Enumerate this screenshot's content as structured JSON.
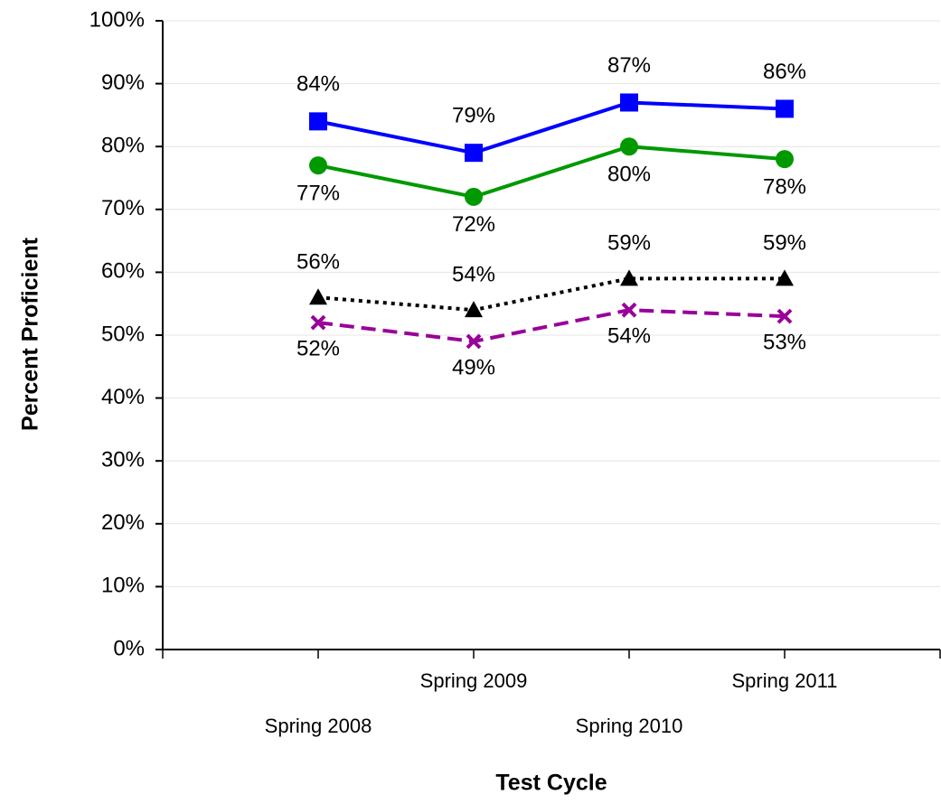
{
  "chart_data": {
    "type": "line",
    "x_label": "Test Cycle",
    "y_label": "Percent Proficient",
    "categories": [
      "Spring 2008",
      "Spring 2009",
      "Spring 2010",
      "Spring 2011"
    ],
    "series": [
      {
        "color": "#0000ff",
        "marker": "square",
        "dash": "solid",
        "values": [
          84,
          79,
          87,
          86
        ],
        "value_labels": [
          "84%",
          "79%",
          "87%",
          "86%"
        ]
      },
      {
        "color": "#009900",
        "marker": "circle",
        "dash": "solid",
        "values": [
          77,
          72,
          80,
          78
        ],
        "value_labels": [
          "77%",
          "72%",
          "80%",
          "78%"
        ]
      },
      {
        "color": "#000000",
        "marker": "triangle",
        "dash": "dotted",
        "values": [
          56,
          54,
          59,
          59
        ],
        "value_labels": [
          "56%",
          "54%",
          "59%",
          "59%"
        ]
      },
      {
        "color": "#990099",
        "marker": "x",
        "dash": "dashed",
        "values": [
          52,
          49,
          54,
          53
        ],
        "value_labels": [
          "52%",
          "49%",
          "54%",
          "53%"
        ]
      }
    ],
    "ylim": [
      0,
      100
    ],
    "yticks": [
      {
        "value": 0,
        "label": "0%"
      },
      {
        "value": 10,
        "label": "10%"
      },
      {
        "value": 20,
        "label": "20%"
      },
      {
        "value": 30,
        "label": "30%"
      },
      {
        "value": 40,
        "label": "40%"
      },
      {
        "value": 50,
        "label": "50%"
      },
      {
        "value": 60,
        "label": "60%"
      },
      {
        "value": 70,
        "label": "70%"
      },
      {
        "value": 80,
        "label": "80%"
      },
      {
        "value": 90,
        "label": "90%"
      },
      {
        "value": 100,
        "label": "100%"
      }
    ],
    "grid": true
  }
}
